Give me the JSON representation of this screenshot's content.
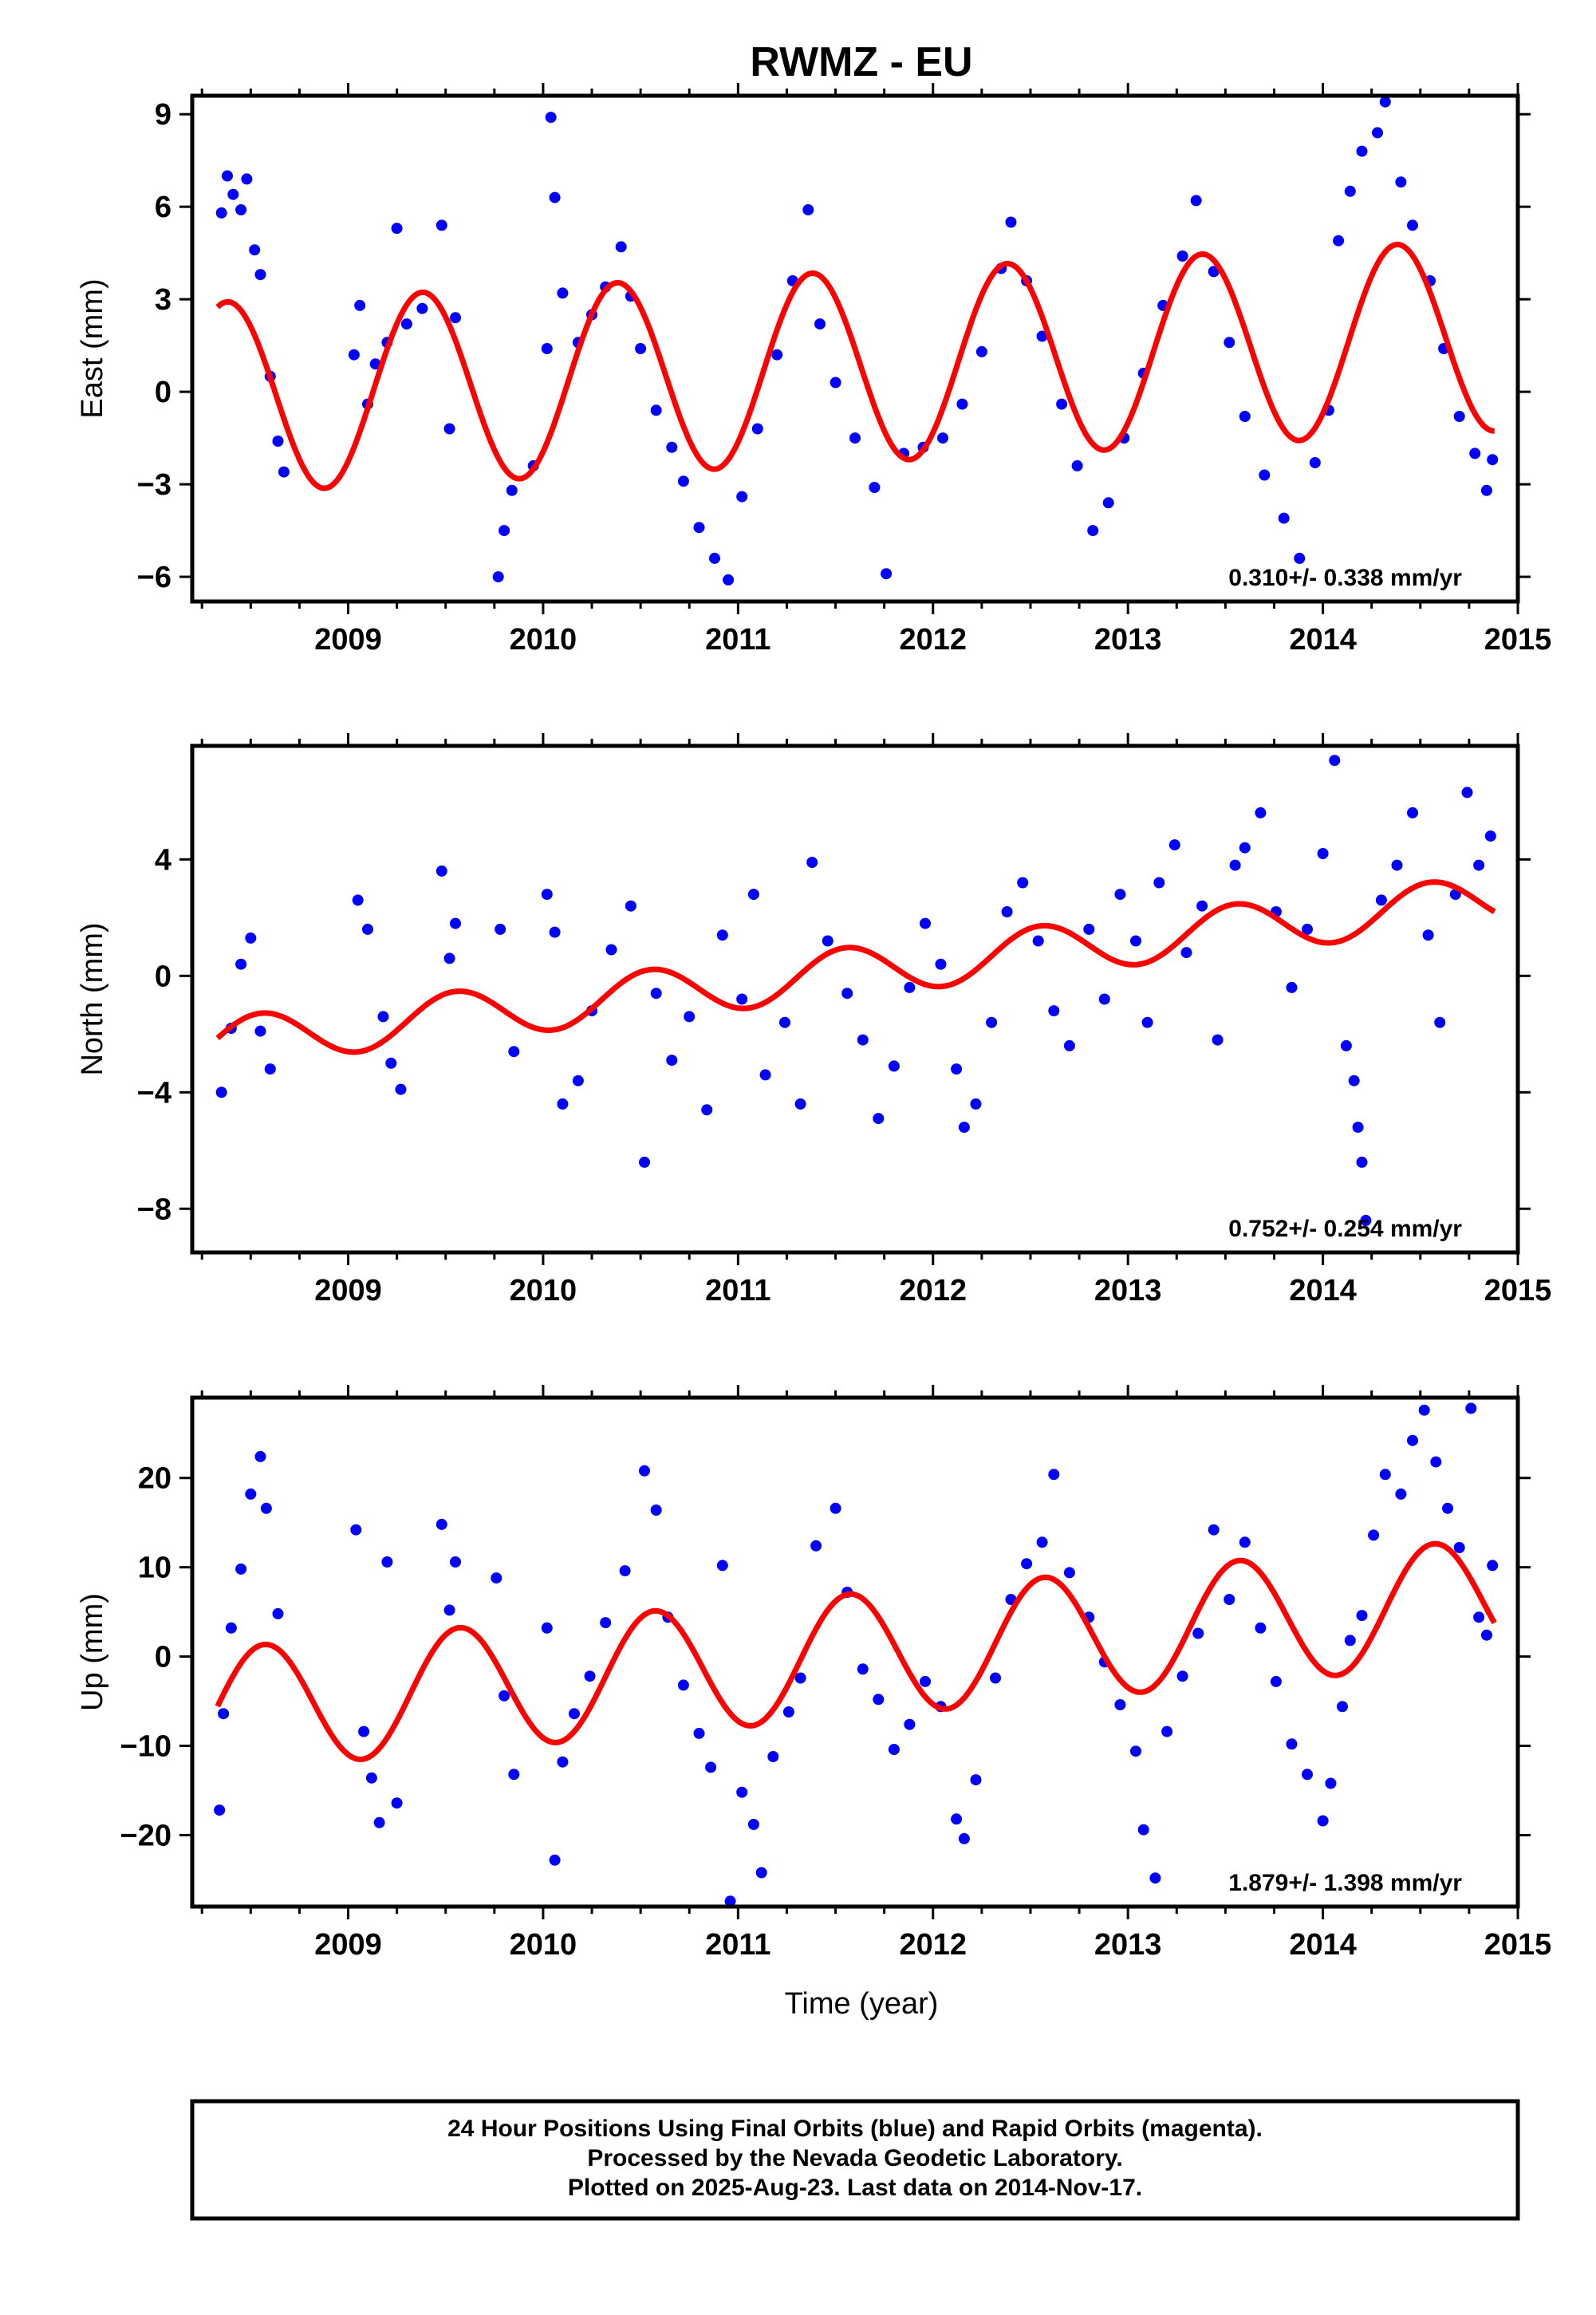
{
  "title": "RWMZ - EU",
  "xlabel": "Time (year)",
  "footer": {
    "lines": [
      "24 Hour Positions Using Final Orbits (blue) and Rapid Orbits (magenta).",
      "Processed by the Nevada Geodetic Laboratory.",
      "Plotted on 2025-Aug-23. Last data on 2014-Nov-17."
    ]
  },
  "colors": {
    "points": "#0000ff",
    "model": "#ff0000",
    "frame": "#000000"
  },
  "chart_data": [
    {
      "type": "scatter",
      "ylabel": "East (mm)",
      "rate_label": "0.310+/- 0.338 mm/yr",
      "xlim": [
        2008.2,
        2015.0
      ],
      "ylim": [
        -6.8,
        9.6
      ],
      "x_ticks": [
        2009,
        2010,
        2011,
        2012,
        2013,
        2014,
        2015
      ],
      "x_tick_labels": [
        "2009",
        "2010",
        "2011",
        "2012",
        "2013",
        "2014",
        "2015"
      ],
      "y_ticks": [
        -6,
        -3,
        0,
        3,
        6,
        9
      ],
      "y_tick_labels": [
        "−6",
        "−3",
        "0",
        "3",
        "6",
        "9"
      ],
      "data_start": 2008.33,
      "data_end": 2014.88,
      "model": {
        "offset": -0.2,
        "rate": 0.31,
        "amplitude": 3.1,
        "peak_phase": 0.38
      },
      "points": [
        [
          2008.35,
          5.8
        ],
        [
          2008.38,
          7.0
        ],
        [
          2008.41,
          6.4
        ],
        [
          2008.45,
          5.9
        ],
        [
          2008.48,
          6.9
        ],
        [
          2008.52,
          4.6
        ],
        [
          2008.55,
          3.8
        ],
        [
          2008.6,
          0.5
        ],
        [
          2008.64,
          -1.6
        ],
        [
          2008.67,
          -2.6
        ],
        [
          2009.03,
          1.2
        ],
        [
          2009.06,
          2.8
        ],
        [
          2009.1,
          -0.4
        ],
        [
          2009.14,
          0.9
        ],
        [
          2009.2,
          1.6
        ],
        [
          2009.25,
          5.3
        ],
        [
          2009.3,
          2.2
        ],
        [
          2009.38,
          2.7
        ],
        [
          2009.48,
          5.4
        ],
        [
          2009.52,
          -1.2
        ],
        [
          2009.55,
          2.4
        ],
        [
          2009.77,
          -6.0
        ],
        [
          2009.8,
          -4.5
        ],
        [
          2009.84,
          -3.2
        ],
        [
          2009.95,
          -2.4
        ],
        [
          2010.02,
          1.4
        ],
        [
          2010.04,
          8.9
        ],
        [
          2010.06,
          6.3
        ],
        [
          2010.1,
          3.2
        ],
        [
          2010.18,
          1.6
        ],
        [
          2010.25,
          2.5
        ],
        [
          2010.32,
          3.4
        ],
        [
          2010.4,
          4.7
        ],
        [
          2010.45,
          3.1
        ],
        [
          2010.5,
          1.4
        ],
        [
          2010.58,
          -0.6
        ],
        [
          2010.66,
          -1.8
        ],
        [
          2010.72,
          -2.9
        ],
        [
          2010.8,
          -4.4
        ],
        [
          2010.88,
          -5.4
        ],
        [
          2010.95,
          -6.1
        ],
        [
          2011.02,
          -3.4
        ],
        [
          2011.1,
          -1.2
        ],
        [
          2011.2,
          1.2
        ],
        [
          2011.28,
          3.6
        ],
        [
          2011.36,
          5.9
        ],
        [
          2011.42,
          2.2
        ],
        [
          2011.5,
          0.3
        ],
        [
          2011.6,
          -1.5
        ],
        [
          2011.7,
          -3.1
        ],
        [
          2011.76,
          -5.9
        ],
        [
          2011.85,
          -2.0
        ],
        [
          2011.95,
          -1.8
        ],
        [
          2012.05,
          -1.5
        ],
        [
          2012.15,
          -0.4
        ],
        [
          2012.25,
          1.3
        ],
        [
          2012.35,
          4.0
        ],
        [
          2012.4,
          5.5
        ],
        [
          2012.48,
          3.6
        ],
        [
          2012.56,
          1.8
        ],
        [
          2012.66,
          -0.4
        ],
        [
          2012.74,
          -2.4
        ],
        [
          2012.82,
          -4.5
        ],
        [
          2012.9,
          -3.6
        ],
        [
          2012.98,
          -1.5
        ],
        [
          2013.08,
          0.6
        ],
        [
          2013.18,
          2.8
        ],
        [
          2013.28,
          4.4
        ],
        [
          2013.35,
          6.2
        ],
        [
          2013.44,
          3.9
        ],
        [
          2013.52,
          1.6
        ],
        [
          2013.6,
          -0.8
        ],
        [
          2013.7,
          -2.7
        ],
        [
          2013.8,
          -4.1
        ],
        [
          2013.88,
          -5.4
        ],
        [
          2013.96,
          -2.3
        ],
        [
          2014.03,
          -0.6
        ],
        [
          2014.08,
          4.9
        ],
        [
          2014.14,
          6.5
        ],
        [
          2014.2,
          7.8
        ],
        [
          2014.28,
          8.4
        ],
        [
          2014.32,
          9.4
        ],
        [
          2014.4,
          6.8
        ],
        [
          2014.46,
          5.4
        ],
        [
          2014.55,
          3.6
        ],
        [
          2014.62,
          1.4
        ],
        [
          2014.7,
          -0.8
        ],
        [
          2014.78,
          -2.0
        ],
        [
          2014.84,
          -3.2
        ],
        [
          2014.87,
          -2.2
        ]
      ]
    },
    {
      "type": "scatter",
      "ylabel": "North (mm)",
      "rate_label": "0.752+/- 0.254 mm/yr",
      "xlim": [
        2008.2,
        2015.0
      ],
      "ylim": [
        -9.5,
        7.9
      ],
      "x_ticks": [
        2009,
        2010,
        2011,
        2012,
        2013,
        2014,
        2015
      ],
      "x_tick_labels": [
        "2009",
        "2010",
        "2011",
        "2012",
        "2013",
        "2014",
        "2015"
      ],
      "y_ticks": [
        -8,
        -4,
        0,
        4
      ],
      "y_tick_labels": [
        "−8",
        "−4",
        "0",
        "4"
      ],
      "data_start": 2008.33,
      "data_end": 2014.88,
      "model": {
        "offset": -2.3,
        "rate": 0.75,
        "amplitude": 0.85,
        "peak_phase": 0.55
      },
      "points": [
        [
          2008.35,
          -4.0
        ],
        [
          2008.4,
          -1.8
        ],
        [
          2008.45,
          0.4
        ],
        [
          2008.5,
          1.3
        ],
        [
          2008.55,
          -1.9
        ],
        [
          2008.6,
          -3.2
        ],
        [
          2009.05,
          2.6
        ],
        [
          2009.1,
          1.6
        ],
        [
          2009.18,
          -1.4
        ],
        [
          2009.22,
          -3.0
        ],
        [
          2009.27,
          -3.9
        ],
        [
          2009.48,
          3.6
        ],
        [
          2009.52,
          0.6
        ],
        [
          2009.55,
          1.8
        ],
        [
          2009.78,
          1.6
        ],
        [
          2009.85,
          -2.6
        ],
        [
          2010.02,
          2.8
        ],
        [
          2010.06,
          1.5
        ],
        [
          2010.1,
          -4.4
        ],
        [
          2010.18,
          -3.6
        ],
        [
          2010.25,
          -1.2
        ],
        [
          2010.35,
          0.9
        ],
        [
          2010.45,
          2.4
        ],
        [
          2010.52,
          -6.4
        ],
        [
          2010.58,
          -0.6
        ],
        [
          2010.66,
          -2.9
        ],
        [
          2010.75,
          -1.4
        ],
        [
          2010.84,
          -4.6
        ],
        [
          2010.92,
          1.4
        ],
        [
          2011.02,
          -0.8
        ],
        [
          2011.08,
          2.8
        ],
        [
          2011.14,
          -3.4
        ],
        [
          2011.24,
          -1.6
        ],
        [
          2011.32,
          -4.4
        ],
        [
          2011.38,
          3.9
        ],
        [
          2011.46,
          1.2
        ],
        [
          2011.56,
          -0.6
        ],
        [
          2011.64,
          -2.2
        ],
        [
          2011.72,
          -4.9
        ],
        [
          2011.8,
          -3.1
        ],
        [
          2011.88,
          -0.4
        ],
        [
          2011.96,
          1.8
        ],
        [
          2012.04,
          0.4
        ],
        [
          2012.12,
          -3.2
        ],
        [
          2012.16,
          -5.2
        ],
        [
          2012.22,
          -4.4
        ],
        [
          2012.3,
          -1.6
        ],
        [
          2012.38,
          2.2
        ],
        [
          2012.46,
          3.2
        ],
        [
          2012.54,
          1.2
        ],
        [
          2012.62,
          -1.2
        ],
        [
          2012.7,
          -2.4
        ],
        [
          2012.8,
          1.6
        ],
        [
          2012.88,
          -0.8
        ],
        [
          2012.96,
          2.8
        ],
        [
          2013.04,
          1.2
        ],
        [
          2013.1,
          -1.6
        ],
        [
          2013.16,
          3.2
        ],
        [
          2013.24,
          4.5
        ],
        [
          2013.3,
          0.8
        ],
        [
          2013.38,
          2.4
        ],
        [
          2013.46,
          -2.2
        ],
        [
          2013.55,
          3.8
        ],
        [
          2013.6,
          4.4
        ],
        [
          2013.68,
          5.6
        ],
        [
          2013.76,
          2.2
        ],
        [
          2013.84,
          -0.4
        ],
        [
          2013.92,
          1.6
        ],
        [
          2014.0,
          4.2
        ],
        [
          2014.06,
          7.4
        ],
        [
          2014.12,
          -2.4
        ],
        [
          2014.16,
          -3.6
        ],
        [
          2014.18,
          -5.2
        ],
        [
          2014.2,
          -6.4
        ],
        [
          2014.22,
          -8.4
        ],
        [
          2014.3,
          2.6
        ],
        [
          2014.38,
          3.8
        ],
        [
          2014.46,
          5.6
        ],
        [
          2014.54,
          1.4
        ],
        [
          2014.6,
          -1.6
        ],
        [
          2014.68,
          2.8
        ],
        [
          2014.74,
          6.3
        ],
        [
          2014.8,
          3.8
        ],
        [
          2014.86,
          4.8
        ]
      ]
    },
    {
      "type": "scatter",
      "ylabel": "Up (mm)",
      "rate_label": "1.879+/- 1.398 mm/yr",
      "xlim": [
        2008.2,
        2015.0
      ],
      "ylim": [
        -28,
        29
      ],
      "x_ticks": [
        2009,
        2010,
        2011,
        2012,
        2013,
        2014,
        2015
      ],
      "x_tick_labels": [
        "2009",
        "2010",
        "2011",
        "2012",
        "2013",
        "2014",
        "2015"
      ],
      "y_ticks": [
        -20,
        -10,
        0,
        10,
        20
      ],
      "y_tick_labels": [
        "−20",
        "−10",
        "0",
        "10",
        "20"
      ],
      "data_start": 2008.33,
      "data_end": 2014.88,
      "model": {
        "offset": -6.0,
        "rate": 1.88,
        "amplitude": 6.9,
        "peak_phase": 0.57
      },
      "points": [
        [
          2008.34,
          -17.2
        ],
        [
          2008.36,
          -6.4
        ],
        [
          2008.4,
          3.2
        ],
        [
          2008.45,
          9.8
        ],
        [
          2008.5,
          18.2
        ],
        [
          2008.55,
          22.4
        ],
        [
          2008.58,
          16.6
        ],
        [
          2008.64,
          4.8
        ],
        [
          2009.04,
          14.2
        ],
        [
          2009.08,
          -8.4
        ],
        [
          2009.12,
          -13.6
        ],
        [
          2009.16,
          -18.6
        ],
        [
          2009.2,
          10.6
        ],
        [
          2009.25,
          -16.4
        ],
        [
          2009.48,
          14.8
        ],
        [
          2009.52,
          5.2
        ],
        [
          2009.55,
          10.6
        ],
        [
          2009.76,
          8.8
        ],
        [
          2009.8,
          -4.4
        ],
        [
          2009.85,
          -13.2
        ],
        [
          2010.02,
          3.2
        ],
        [
          2010.06,
          -22.8
        ],
        [
          2010.1,
          -11.8
        ],
        [
          2010.16,
          -6.4
        ],
        [
          2010.24,
          -2.2
        ],
        [
          2010.32,
          3.8
        ],
        [
          2010.42,
          9.6
        ],
        [
          2010.52,
          20.8
        ],
        [
          2010.58,
          16.4
        ],
        [
          2010.64,
          4.4
        ],
        [
          2010.72,
          -3.2
        ],
        [
          2010.8,
          -8.6
        ],
        [
          2010.86,
          -12.4
        ],
        [
          2010.92,
          10.2
        ],
        [
          2010.96,
          -27.4
        ],
        [
          2011.02,
          -15.2
        ],
        [
          2011.08,
          -18.8
        ],
        [
          2011.12,
          -24.2
        ],
        [
          2011.18,
          -11.2
        ],
        [
          2011.26,
          -6.2
        ],
        [
          2011.32,
          -2.4
        ],
        [
          2011.4,
          12.4
        ],
        [
          2011.5,
          16.6
        ],
        [
          2011.56,
          7.2
        ],
        [
          2011.64,
          -1.4
        ],
        [
          2011.72,
          -4.8
        ],
        [
          2011.8,
          -10.4
        ],
        [
          2011.88,
          -7.6
        ],
        [
          2011.96,
          -2.8
        ],
        [
          2012.04,
          -5.6
        ],
        [
          2012.12,
          -18.2
        ],
        [
          2012.16,
          -20.4
        ],
        [
          2012.22,
          -13.8
        ],
        [
          2012.32,
          -2.4
        ],
        [
          2012.4,
          6.4
        ],
        [
          2012.48,
          10.4
        ],
        [
          2012.56,
          12.8
        ],
        [
          2012.62,
          20.4
        ],
        [
          2012.7,
          9.4
        ],
        [
          2012.8,
          4.4
        ],
        [
          2012.88,
          -0.6
        ],
        [
          2012.96,
          -5.4
        ],
        [
          2013.04,
          -10.6
        ],
        [
          2013.08,
          -19.4
        ],
        [
          2013.14,
          -24.8
        ],
        [
          2013.2,
          -8.4
        ],
        [
          2013.28,
          -2.2
        ],
        [
          2013.36,
          2.6
        ],
        [
          2013.44,
          14.2
        ],
        [
          2013.52,
          6.4
        ],
        [
          2013.6,
          12.8
        ],
        [
          2013.68,
          3.2
        ],
        [
          2013.76,
          -2.8
        ],
        [
          2013.84,
          -9.8
        ],
        [
          2013.92,
          -13.2
        ],
        [
          2014.0,
          -18.4
        ],
        [
          2014.04,
          -14.2
        ],
        [
          2014.1,
          -5.6
        ],
        [
          2014.14,
          1.8
        ],
        [
          2014.2,
          4.6
        ],
        [
          2014.26,
          13.6
        ],
        [
          2014.32,
          20.4
        ],
        [
          2014.4,
          18.2
        ],
        [
          2014.46,
          24.2
        ],
        [
          2014.52,
          27.6
        ],
        [
          2014.58,
          21.8
        ],
        [
          2014.64,
          16.6
        ],
        [
          2014.7,
          12.2
        ],
        [
          2014.76,
          27.8
        ],
        [
          2014.8,
          4.4
        ],
        [
          2014.84,
          2.4
        ],
        [
          2014.87,
          10.2
        ]
      ]
    }
  ]
}
